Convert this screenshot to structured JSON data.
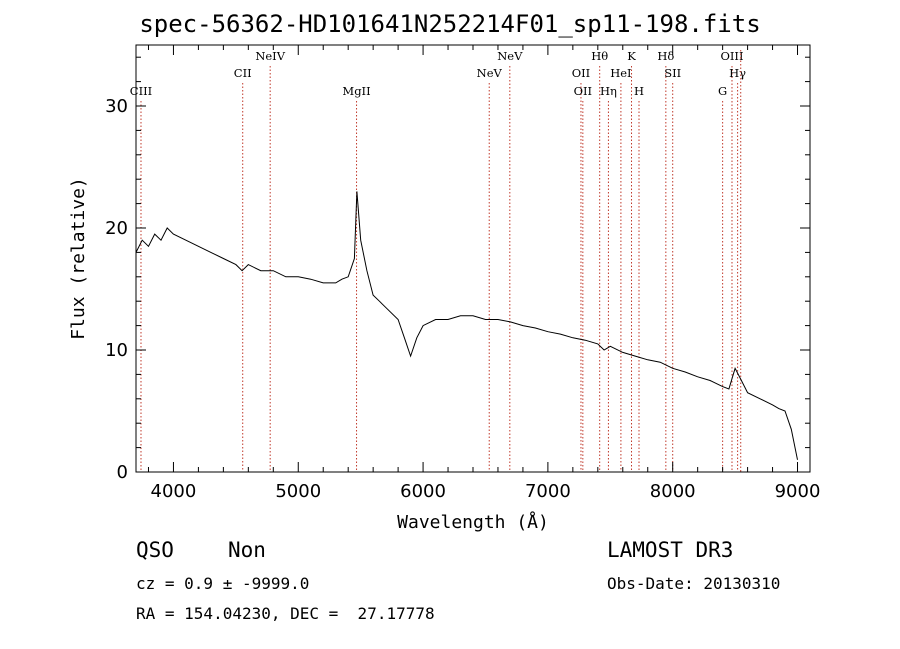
{
  "title": "spec-56362-HD101641N252214F01_sp11-198.fits",
  "chart_data": {
    "type": "line",
    "xlabel": "Wavelength (Å)",
    "ylabel": "Flux (relative)",
    "xlim": [
      3700,
      9100
    ],
    "ylim": [
      0,
      35
    ],
    "xticks": [
      4000,
      5000,
      6000,
      7000,
      8000,
      9000
    ],
    "yticks": [
      0,
      10,
      20,
      30
    ],
    "grid": false,
    "series": [
      {
        "x": [
          3700,
          3750,
          3800,
          3850,
          3900,
          3950,
          4000,
          4100,
          4200,
          4300,
          4400,
          4500,
          4550,
          4600,
          4700,
          4800,
          4900,
          5000,
          5100,
          5200,
          5300,
          5350,
          5400,
          5450,
          5470,
          5500,
          5550,
          5600,
          5650,
          5700,
          5800,
          5850,
          5900,
          5950,
          6000,
          6100,
          6200,
          6300,
          6400,
          6500,
          6600,
          6700,
          6800,
          6900,
          7000,
          7100,
          7200,
          7300,
          7400,
          7450,
          7500,
          7600,
          7700,
          7800,
          7900,
          8000,
          8100,
          8200,
          8300,
          8400,
          8450,
          8500,
          8550,
          8600,
          8700,
          8800,
          8850,
          8900,
          8950,
          9000
        ],
        "y": [
          18.0,
          19.0,
          18.5,
          19.5,
          19.0,
          20.0,
          19.5,
          19.0,
          18.5,
          18.0,
          17.5,
          17.0,
          16.5,
          17.0,
          16.5,
          16.5,
          16.0,
          16.0,
          15.8,
          15.5,
          15.5,
          15.8,
          16.0,
          17.5,
          23.0,
          19.0,
          16.5,
          14.5,
          14.0,
          13.5,
          12.5,
          11.0,
          9.5,
          11.0,
          12.0,
          12.5,
          12.5,
          12.8,
          12.8,
          12.5,
          12.5,
          12.3,
          12.0,
          11.8,
          11.5,
          11.3,
          11.0,
          10.8,
          10.5,
          10.0,
          10.3,
          9.8,
          9.5,
          9.2,
          9.0,
          8.5,
          8.2,
          7.8,
          7.5,
          7.0,
          6.8,
          8.5,
          7.5,
          6.5,
          6.0,
          5.5,
          5.2,
          5.0,
          3.5,
          1.0
        ]
      }
    ],
    "lines": [
      {
        "label": "CIII",
        "x": 3740,
        "row": 3
      },
      {
        "label": "CII",
        "x": 4555,
        "row": 2
      },
      {
        "label": "NeIV",
        "x": 4775,
        "row": 1
      },
      {
        "label": "MgII",
        "x": 5467,
        "row": 3
      },
      {
        "label": "NeV",
        "x": 6530,
        "row": 2
      },
      {
        "label": "NeV",
        "x": 6695,
        "row": 1
      },
      {
        "label": "OII",
        "x": 7265,
        "row": 2
      },
      {
        "label": "OII",
        "x": 7280,
        "row": 3
      },
      {
        "label": "Hθ",
        "x": 7415,
        "row": 1
      },
      {
        "label": "Hη",
        "x": 7485,
        "row": 3
      },
      {
        "label": "HeI",
        "x": 7585,
        "row": 2
      },
      {
        "label": "K",
        "x": 7670,
        "row": 1
      },
      {
        "label": "H",
        "x": 7730,
        "row": 3
      },
      {
        "label": "Hδ",
        "x": 7945,
        "row": 1
      },
      {
        "label": "SII",
        "x": 8000,
        "row": 2
      },
      {
        "label": "G",
        "x": 8400,
        "row": 3
      },
      {
        "label": "OIII",
        "x": 8475,
        "row": 1
      },
      {
        "label": "Hγ",
        "x": 8520,
        "row": 2
      },
      {
        "label": "",
        "x": 8545,
        "row": 0
      }
    ]
  },
  "info": {
    "class": "QSO",
    "subclass": "Non",
    "survey": "LAMOST DR3",
    "cz": "cz = 0.9 ± -9999.0",
    "obs_date": "Obs-Date: 20130310",
    "coords": "RA = 154.04230, DEC =  27.17778"
  },
  "colors": {
    "axis": "#000000",
    "spectrum": "#000000",
    "line_marker": "#c0392b"
  }
}
